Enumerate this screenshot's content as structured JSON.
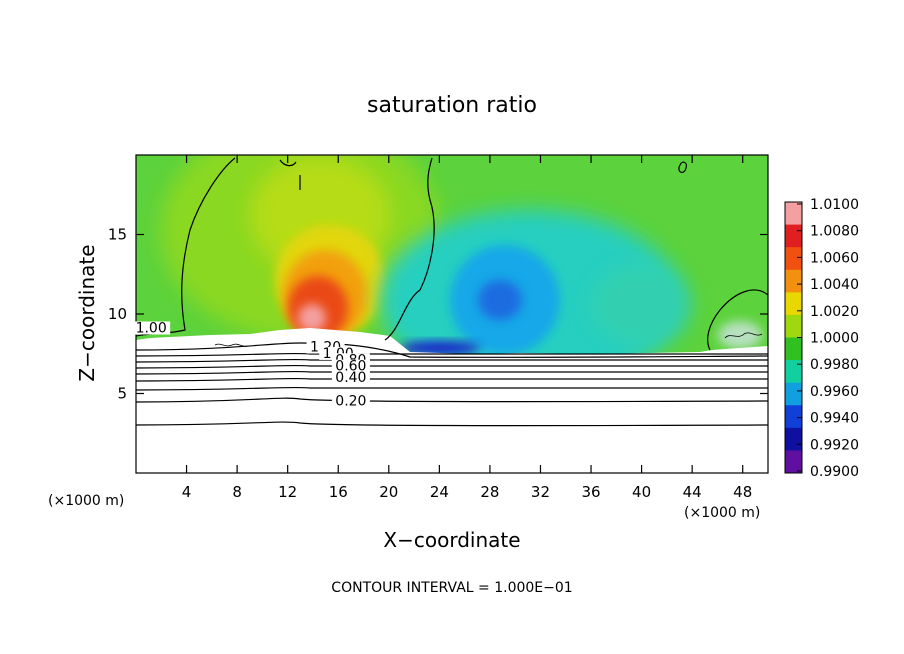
{
  "chart_data": {
    "type": "heatmap",
    "title": "saturation ratio",
    "xlabel": "X−coordinate",
    "ylabel": "Z−coordinate",
    "x_unit_left": "(×1000 m)",
    "x_unit_right": "(×1000 m)",
    "xlim": [
      0,
      50
    ],
    "ylim": [
      0,
      20
    ],
    "x_ticks": [
      4,
      8,
      12,
      16,
      20,
      24,
      28,
      32,
      36,
      40,
      44,
      48
    ],
    "y_ticks": [
      5,
      10,
      15
    ],
    "colorbar": {
      "levels": [
        "1.0100",
        "1.0080",
        "1.0060",
        "1.0040",
        "1.0020",
        "1.0000",
        "0.9980",
        "0.9960",
        "0.9940",
        "0.9920",
        "0.9900"
      ],
      "colors": [
        "#f4a0a0",
        "#e02020",
        "#f05010",
        "#f29010",
        "#e8d800",
        "#a0d810",
        "#30c020",
        "#10d0a0",
        "#10a0e0",
        "#1040d8",
        "#1010a0",
        "#6010a0"
      ]
    },
    "contour_labels": [
      {
        "text": "1.00",
        "x": 1.2,
        "z": 8.9
      },
      {
        "text": "1.20",
        "x": 15.0,
        "z": 7.7
      },
      {
        "text": "1.00",
        "x": 16.0,
        "z": 7.3
      },
      {
        "text": "0.80",
        "x": 17.0,
        "z": 6.9
      },
      {
        "text": "0.60",
        "x": 17.0,
        "z": 6.5
      },
      {
        "text": "0.40",
        "x": 17.0,
        "z": 5.8
      },
      {
        "text": "0.20",
        "x": 17.0,
        "z": 4.3
      }
    ],
    "contour_lines_z": [
      3.1,
      4.6,
      5.3,
      5.9,
      6.3,
      6.6,
      6.9,
      7.2,
      7.5
    ],
    "footer": "CONTOUR INTERVAL = 1.000E−01"
  }
}
